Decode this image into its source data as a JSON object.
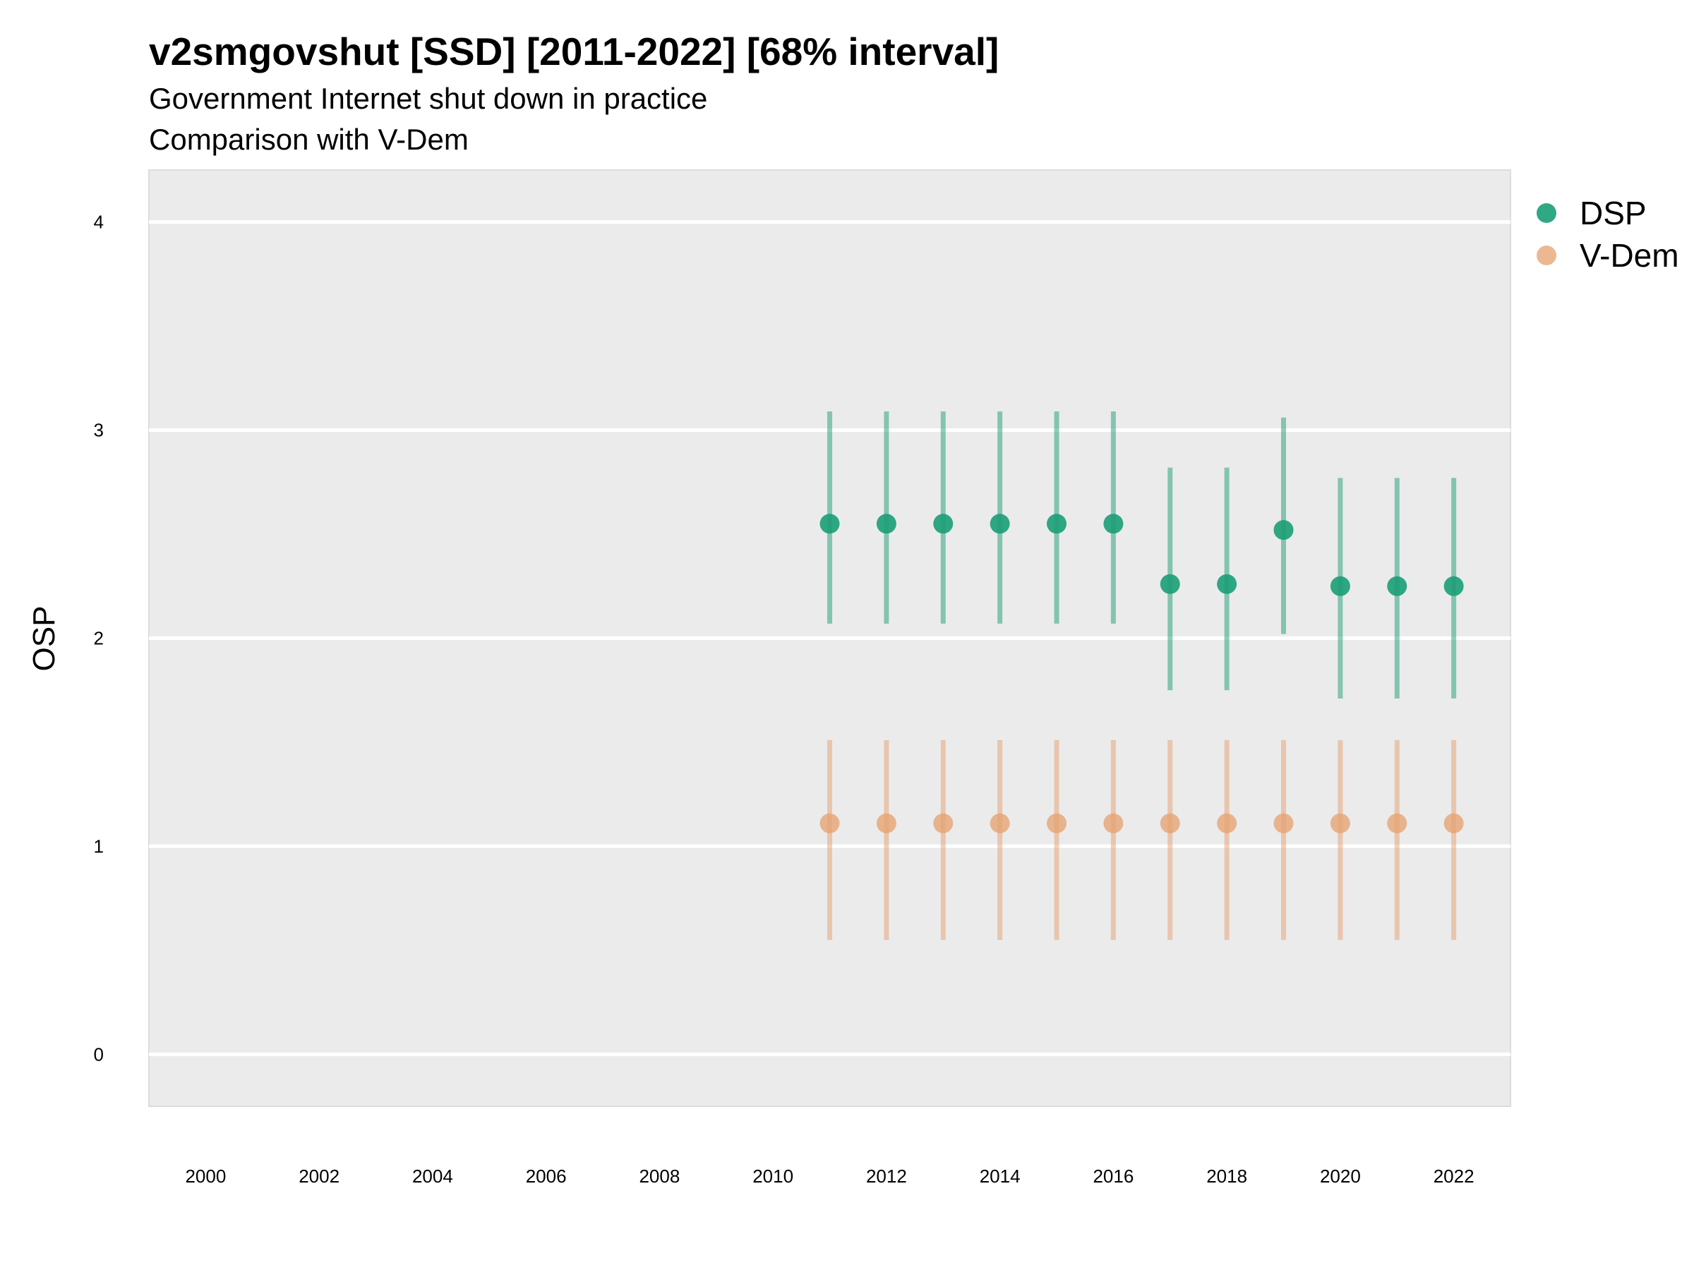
{
  "chart_data": {
    "type": "scatter",
    "title": "v2smgovshut [SSD] [2011-2022] [68% interval]",
    "subtitle_line1": "Government Internet shut down in practice",
    "subtitle_line2": "Comparison with V-Dem",
    "xlabel": "",
    "ylabel": "OSP",
    "xlim": [
      1999,
      2023
    ],
    "ylim": [
      -0.25,
      4.25
    ],
    "x_ticks": [
      2000,
      2002,
      2004,
      2006,
      2008,
      2010,
      2012,
      2014,
      2016,
      2018,
      2020,
      2022
    ],
    "y_ticks": [
      0,
      1,
      2,
      3,
      4
    ],
    "grid": true,
    "legend_position": "right",
    "series": [
      {
        "name": "DSP",
        "color": "#1b9e77",
        "x": [
          2011,
          2012,
          2013,
          2014,
          2015,
          2016,
          2017,
          2018,
          2019,
          2020,
          2021,
          2022
        ],
        "y": [
          2.55,
          2.55,
          2.55,
          2.55,
          2.55,
          2.55,
          2.26,
          2.26,
          2.52,
          2.25,
          2.25,
          2.25
        ],
        "lower": [
          2.07,
          2.07,
          2.07,
          2.07,
          2.07,
          2.07,
          1.75,
          1.75,
          2.02,
          1.71,
          1.71,
          1.71
        ],
        "upper": [
          3.09,
          3.09,
          3.09,
          3.09,
          3.09,
          3.09,
          2.82,
          2.82,
          3.06,
          2.77,
          2.77,
          2.77
        ]
      },
      {
        "name": "V-Dem",
        "color": "#e6a06e",
        "x": [
          2011,
          2012,
          2013,
          2014,
          2015,
          2016,
          2017,
          2018,
          2019,
          2020,
          2021,
          2022
        ],
        "y": [
          1.11,
          1.11,
          1.11,
          1.11,
          1.11,
          1.11,
          1.11,
          1.11,
          1.11,
          1.11,
          1.11,
          1.11
        ],
        "lower": [
          0.55,
          0.55,
          0.55,
          0.55,
          0.55,
          0.55,
          0.55,
          0.55,
          0.55,
          0.55,
          0.55,
          0.55
        ],
        "upper": [
          1.51,
          1.51,
          1.51,
          1.51,
          1.51,
          1.51,
          1.51,
          1.51,
          1.51,
          1.51,
          1.51,
          1.51
        ]
      }
    ]
  }
}
